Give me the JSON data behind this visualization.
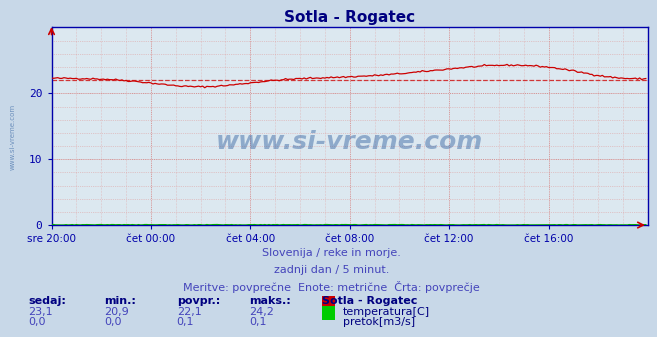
{
  "title": "Sotla - Rogatec",
  "bg_color": "#c8d8e8",
  "plot_bg_color": "#dce8f0",
  "grid_color_major": "#c8a0a0",
  "grid_color_minor": "#d8c0c0",
  "title_color": "#000080",
  "axis_color": "#0000aa",
  "tick_color": "#000080",
  "xlim": [
    0,
    288
  ],
  "ylim": [
    0,
    30
  ],
  "yticks": [
    0,
    10,
    20
  ],
  "xtick_labels": [
    "sre 20:00",
    "čet 00:00",
    "čet 04:00",
    "čet 08:00",
    "čet 12:00",
    "čet 16:00"
  ],
  "xtick_positions": [
    0,
    48,
    96,
    144,
    192,
    240
  ],
  "temp_avg": 22.1,
  "temp_color": "#cc0000",
  "flow_color": "#00aa00",
  "subtitle1": "Slovenija / reke in morje.",
  "subtitle2": "zadnji dan / 5 minut.",
  "subtitle3": "Meritve: povprečne  Enote: metrične  Črta: povprečje",
  "subtitle_color": "#4444bb",
  "watermark": "www.si-vreme.com",
  "watermark_color": "#3060a0",
  "left_label": "www.si-vreme.com",
  "table_headers": [
    "sedaj:",
    "min.:",
    "povpr.:",
    "maks.:",
    "Sotla - Rogatec"
  ],
  "table_row1_vals": [
    "23,1",
    "20,9",
    "22,1",
    "24,2"
  ],
  "table_row1_label": "temperatura[C]",
  "table_row1_color": "#cc0000",
  "table_row2_vals": [
    "0,0",
    "0,0",
    "0,1",
    "0,1"
  ],
  "table_row2_label": "pretok[m3/s]",
  "table_row2_color": "#00cc00",
  "table_header_color": "#000080",
  "table_val_color": "#4444bb"
}
